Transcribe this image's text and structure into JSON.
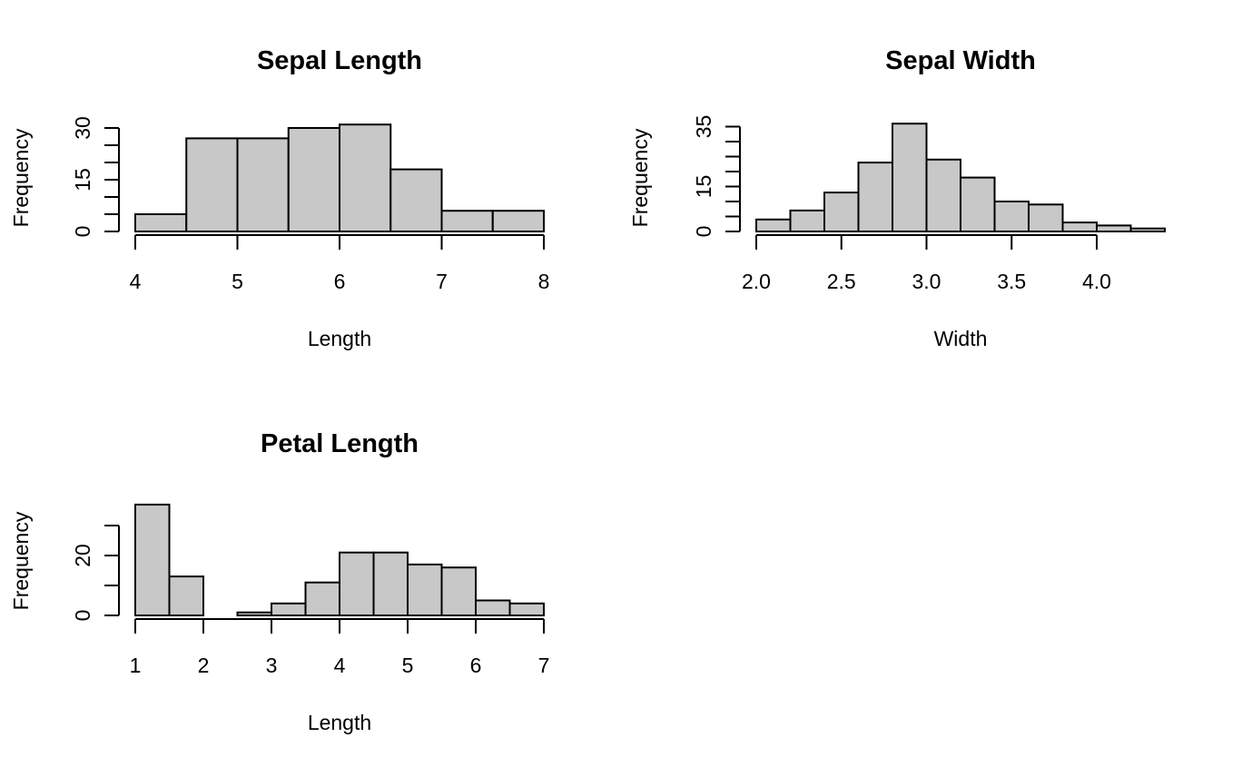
{
  "chart_data": [
    {
      "type": "bar",
      "title": "Sepal Length",
      "xlabel": "Length",
      "ylabel": "Frequency",
      "bin_edges": [
        4,
        4.5,
        5,
        5.5,
        6,
        6.5,
        7,
        7.5,
        8
      ],
      "values": [
        5,
        27,
        27,
        30,
        31,
        18,
        6,
        6
      ],
      "xlim": [
        4,
        8
      ],
      "ylim": [
        0,
        31
      ],
      "xticks": [
        "4",
        "5",
        "6",
        "7",
        "8"
      ],
      "yticks": [
        "0",
        "15",
        "30"
      ]
    },
    {
      "type": "bar",
      "title": "Sepal Width",
      "xlabel": "Width",
      "ylabel": "Frequency",
      "bin_edges": [
        2.0,
        2.2,
        2.4,
        2.6,
        2.8,
        3.0,
        3.2,
        3.4,
        3.6,
        3.8,
        4.0,
        4.2,
        4.4
      ],
      "values": [
        4,
        7,
        13,
        23,
        36,
        24,
        18,
        10,
        9,
        3,
        2,
        1
      ],
      "xlim": [
        2.0,
        4.4
      ],
      "ylim": [
        0,
        36
      ],
      "xticks": [
        "2.0",
        "2.5",
        "3.0",
        "3.5",
        "4.0"
      ],
      "yticks": [
        "0",
        "15",
        "35"
      ]
    },
    {
      "type": "bar",
      "title": "Petal Length",
      "xlabel": "Length",
      "ylabel": "Frequency",
      "bin_edges": [
        1,
        1.5,
        2,
        2.5,
        3,
        3.5,
        4,
        4.5,
        5,
        5.5,
        6,
        6.5,
        7
      ],
      "values": [
        37,
        13,
        0,
        1,
        4,
        11,
        21,
        21,
        17,
        16,
        5,
        4
      ],
      "xlim": [
        1,
        7
      ],
      "ylim": [
        0,
        37
      ],
      "xticks": [
        "1",
        "2",
        "3",
        "4",
        "5",
        "6",
        "7"
      ],
      "yticks": [
        "0",
        "20"
      ]
    }
  ]
}
